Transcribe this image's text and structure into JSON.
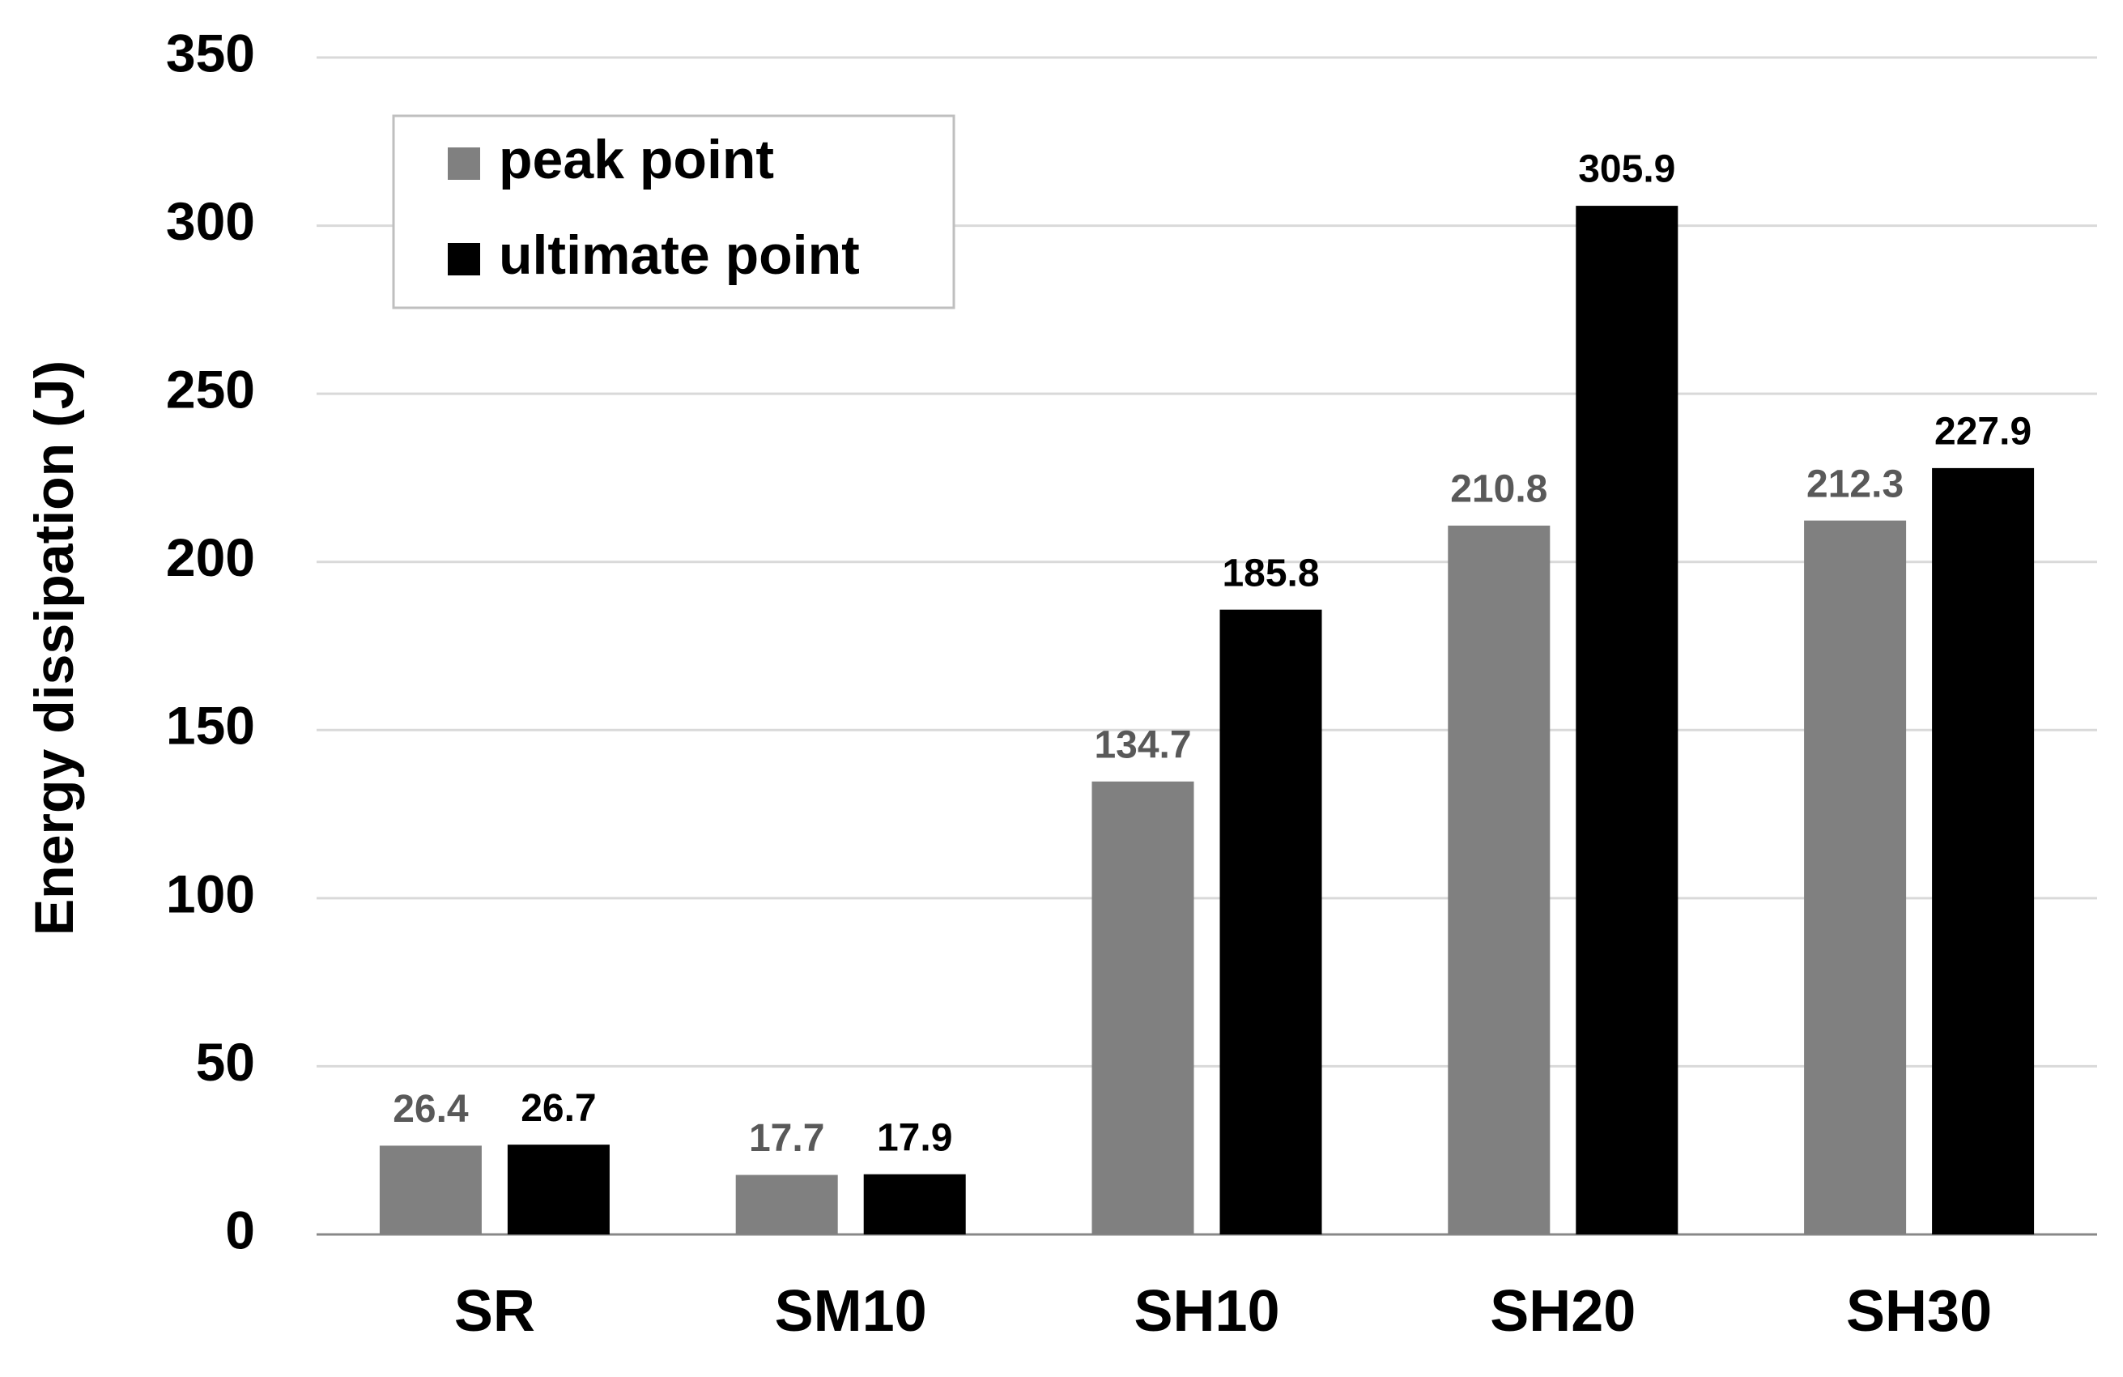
{
  "chart_data": {
    "type": "bar",
    "y_label": "Energy dissipation (J)",
    "categories": [
      "SR",
      "SM10",
      "SH10",
      "SH20",
      "SH30"
    ],
    "series": [
      {
        "name": "peak point",
        "color": "#808080",
        "label_color": "#595959",
        "values": [
          26.4,
          17.7,
          134.7,
          210.8,
          212.3
        ]
      },
      {
        "name": "ultimate point",
        "color": "#000000",
        "label_color": "#000000",
        "values": [
          26.7,
          17.9,
          185.8,
          305.9,
          227.9
        ]
      }
    ],
    "ylim": [
      0,
      350
    ],
    "yticks": [
      0,
      50,
      100,
      150,
      200,
      250,
      300,
      350
    ],
    "grid": true,
    "legend": "top-left"
  }
}
